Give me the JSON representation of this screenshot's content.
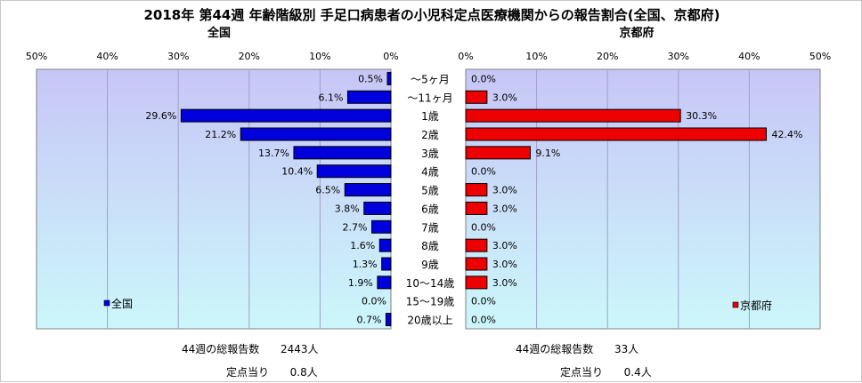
{
  "title": "2018年 第44週 年齢階級別 手足口病患者の小児科定点医療機関からの報告割合(全国、京都府)",
  "colors": {
    "national": "#0000dd",
    "kyoto": "#ee0000",
    "bg_top": "#c7c6f6",
    "bg_bottom": "#ccf7fb"
  },
  "chart_data": [
    {
      "type": "bar",
      "orientation": "horizontal",
      "direction": "reversed",
      "title": "全国",
      "legend": "全国",
      "legend_position": "bottom-left",
      "xlim": [
        0,
        50
      ],
      "ticks": [
        "50%",
        "40%",
        "30%",
        "20%",
        "10%",
        "0%"
      ],
      "categories": [
        "～5ヶ月",
        "～11ヶ月",
        "1歳",
        "2歳",
        "3歳",
        "4歳",
        "5歳",
        "6歳",
        "7歳",
        "8歳",
        "9歳",
        "10～14歳",
        "15～19歳",
        "20歳以上"
      ],
      "values": [
        0.5,
        6.1,
        29.6,
        21.2,
        13.7,
        10.4,
        6.5,
        3.8,
        2.7,
        1.6,
        1.3,
        1.9,
        0.0,
        0.7
      ],
      "value_labels": [
        "0.5%",
        "6.1%",
        "29.6%",
        "21.2%",
        "13.7%",
        "10.4%",
        "6.5%",
        "3.8%",
        "2.7%",
        "1.6%",
        "1.3%",
        "1.9%",
        "0.0%",
        "0.7%"
      ]
    },
    {
      "type": "bar",
      "orientation": "horizontal",
      "title": "京都府",
      "legend": "京都府",
      "legend_position": "bottom-right",
      "xlim": [
        0,
        50
      ],
      "ticks": [
        "0%",
        "10%",
        "20%",
        "30%",
        "40%",
        "50%"
      ],
      "categories": [
        "～5ヶ月",
        "～11ヶ月",
        "1歳",
        "2歳",
        "3歳",
        "4歳",
        "5歳",
        "6歳",
        "7歳",
        "8歳",
        "9歳",
        "10～14歳",
        "15～19歳",
        "20歳以上"
      ],
      "values": [
        0.0,
        3.0,
        30.3,
        42.4,
        9.1,
        0.0,
        3.0,
        3.0,
        0.0,
        3.0,
        3.0,
        3.0,
        0.0,
        0.0
      ],
      "value_labels": [
        "0.0%",
        "3.0%",
        "30.3%",
        "42.4%",
        "9.1%",
        "0.0%",
        "3.0%",
        "3.0%",
        "0.0%",
        "3.0%",
        "3.0%",
        "3.0%",
        "0.0%",
        "0.0%"
      ]
    }
  ],
  "footer": {
    "national": {
      "total_label": "44週の総報告数",
      "total_value": "2443人",
      "per_label": "定点当り",
      "per_value": "0.8人"
    },
    "kyoto": {
      "total_label": "44週の総報告数",
      "total_value": "33人",
      "per_label": "定点当り",
      "per_value": "0.4人"
    }
  }
}
